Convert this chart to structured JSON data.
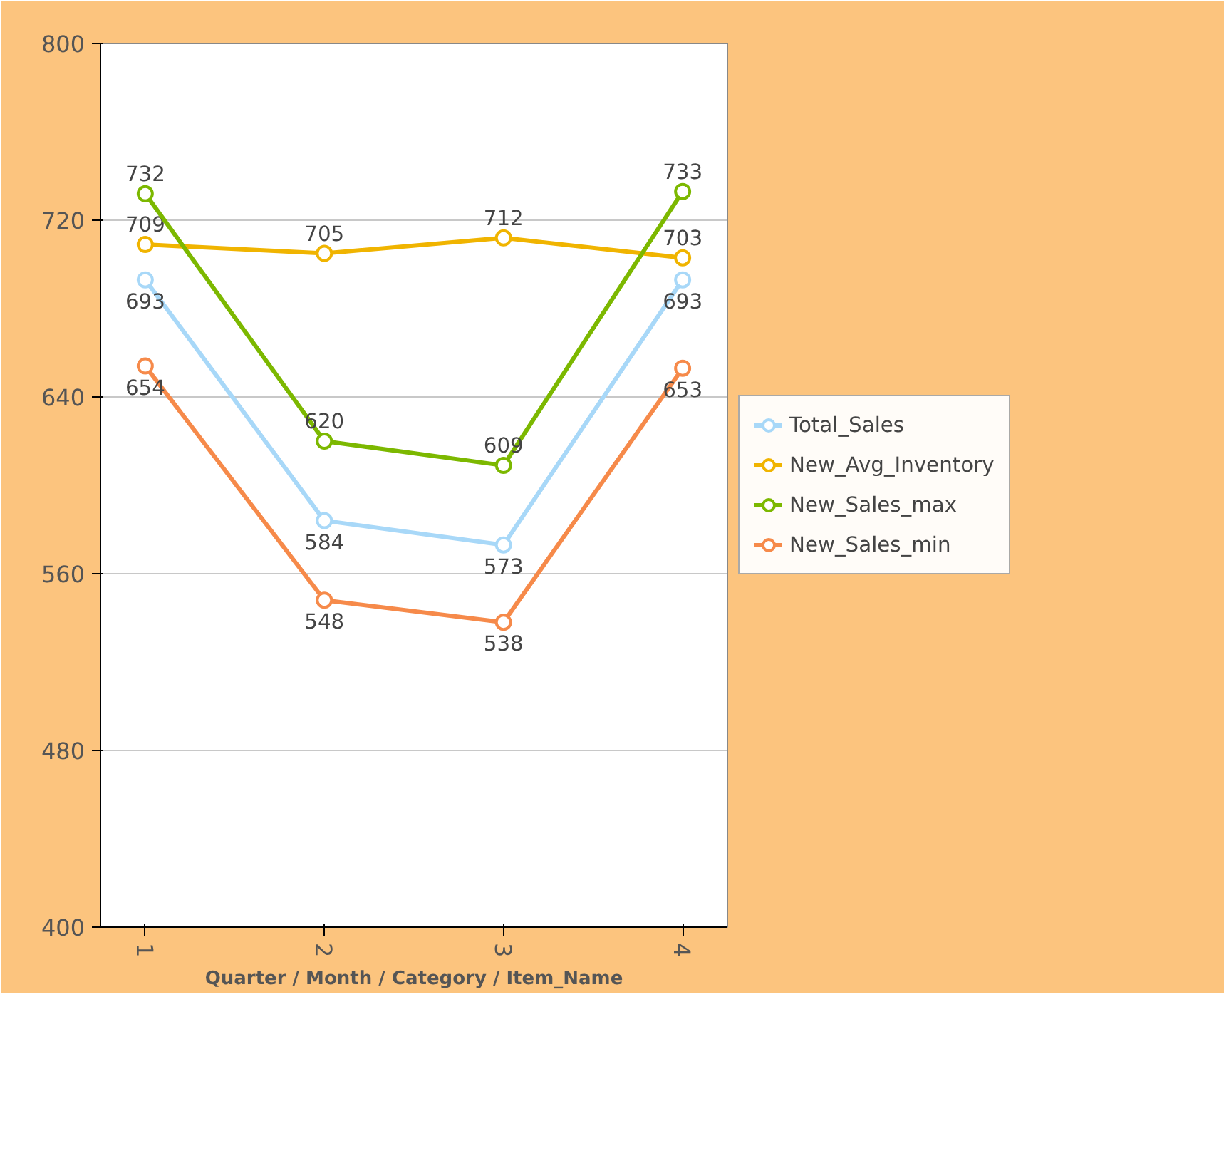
{
  "chart_data": {
    "type": "line",
    "xlabel": "Quarter / Month / Category / Item_Name",
    "categories": [
      "1",
      "2",
      "3",
      "4"
    ],
    "series": [
      {
        "name": "Total_Sales",
        "color": "#a8d8f8",
        "values": [
          693,
          584,
          573,
          693
        ]
      },
      {
        "name": "New_Avg_Inventory",
        "color": "#f0b400",
        "values": [
          709,
          705,
          712,
          703
        ]
      },
      {
        "name": "New_Sales_max",
        "color": "#7cb800",
        "values": [
          732,
          620,
          609,
          733
        ]
      },
      {
        "name": "New_Sales_min",
        "color": "#f68a4a",
        "values": [
          654,
          548,
          538,
          653
        ]
      }
    ],
    "ylim": [
      400,
      800
    ],
    "yticks": [
      400,
      480,
      560,
      640,
      720,
      800
    ],
    "grid": "y",
    "legend": "right",
    "marker": "circle",
    "line_style": "solid",
    "data_labels": true
  }
}
